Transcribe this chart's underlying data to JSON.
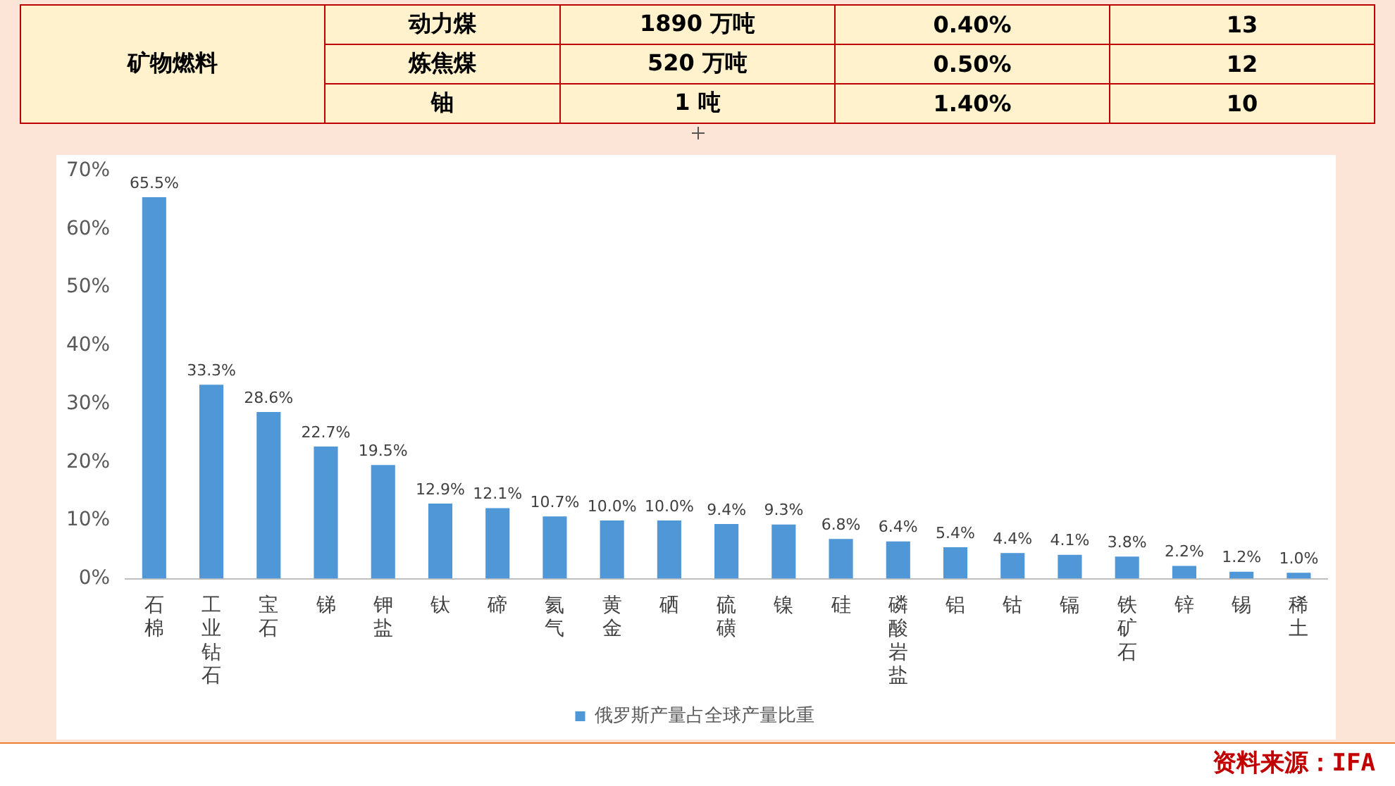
{
  "chart_data": [
    {
      "type": "other",
      "annotations": [
        "矿物燃料",
        "动力煤",
        "1890  万吨",
        "0.40%",
        "13",
        "炼焦煤",
        "520  万吨",
        "0.50%",
        "12",
        "铀",
        "1  吨",
        "1.40%",
        "10"
      ]
    },
    {
      "type": "bar",
      "categories": [
        "石棉",
        "工业钻石",
        "宝石",
        "锑",
        "钾盐",
        "钛",
        "碲",
        "氦气",
        "黄金",
        "硒",
        "硫磺",
        "镍",
        "硅",
        "磷酸岩盐",
        "铝",
        "钴",
        "镉",
        "铁矿石",
        "锌",
        "锡",
        "稀土"
      ],
      "series": [
        {
          "name": "俄罗斯产量占全球产量比重",
          "color": "#4f97d6",
          "values": [
            65.5,
            33.3,
            28.6,
            22.7,
            19.5,
            12.9,
            12.1,
            10.7,
            10.0,
            10.0,
            9.4,
            9.3,
            6.8,
            6.4,
            5.4,
            4.4,
            4.1,
            3.8,
            2.2,
            1.2,
            1.0
          ],
          "value_labels": [
            "65.5%",
            "33.3%",
            "28.6%",
            "22.7%",
            "19.5%",
            "12.9%",
            "12.1%",
            "10.7%",
            "10.0%",
            "10.0%",
            "9.4%",
            "9.3%",
            "6.8%",
            "6.4%",
            "5.4%",
            "4.4%",
            "4.1%",
            "3.8%",
            "2.2%",
            "1.2%",
            "1.0%"
          ]
        }
      ],
      "ylim": [
        0,
        70
      ],
      "yticks": [
        {
          "value": 0,
          "label": "0%"
        },
        {
          "value": 10,
          "label": "10%"
        },
        {
          "value": 20,
          "label": "20%"
        },
        {
          "value": 30,
          "label": "30%"
        },
        {
          "value": 40,
          "label": "40%"
        },
        {
          "value": 50,
          "label": "50%"
        },
        {
          "value": 60,
          "label": "60%"
        },
        {
          "value": 70,
          "label": "70%"
        }
      ],
      "grid": false,
      "legend": "bottom",
      "annotations": [
        "资料来源：IFA"
      ]
    }
  ]
}
